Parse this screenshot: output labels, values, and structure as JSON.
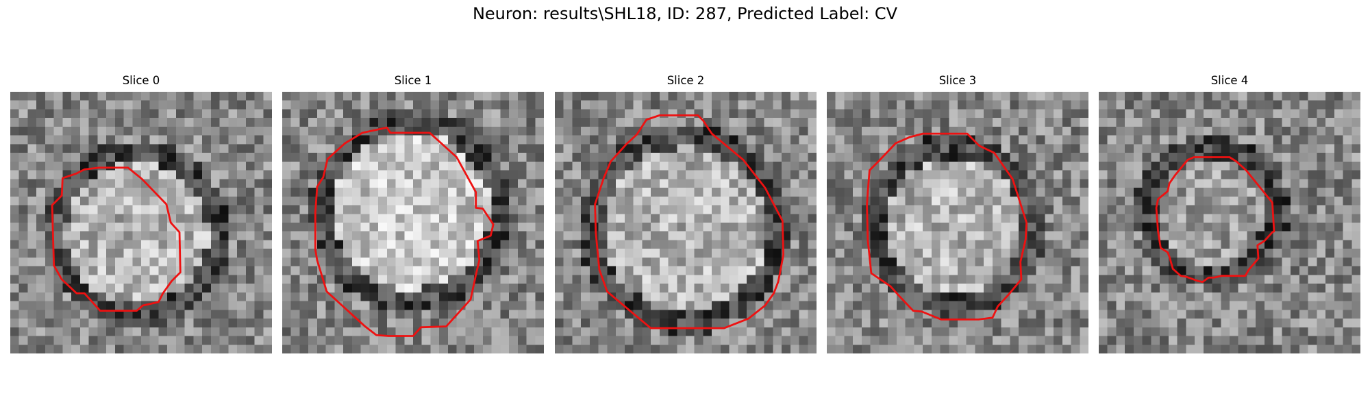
{
  "figure": {
    "title": "Neuron: results\\SHL18, ID: 287, Predicted Label: CV",
    "contour_color": "#ee1111",
    "grid_size": 30,
    "colormap": "gray"
  },
  "panels": [
    {
      "title": "Slice 0",
      "membrane": {
        "cx": 14.5,
        "cy": 16.3,
        "r": 9.3
      },
      "interior": "light",
      "seed": 11,
      "contour": [
        [
          10.2,
          8.7
        ],
        [
          13.5,
          8.7
        ],
        [
          15.1,
          10.0
        ],
        [
          17.9,
          12.9
        ],
        [
          18.4,
          15.0
        ],
        [
          19.4,
          16.1
        ],
        [
          19.5,
          20.7
        ],
        [
          18.5,
          21.7
        ],
        [
          17.5,
          23.1
        ],
        [
          17.0,
          24.1
        ],
        [
          15.2,
          24.5
        ],
        [
          14.5,
          25.1
        ],
        [
          10.3,
          25.1
        ],
        [
          8.5,
          23.1
        ],
        [
          7.6,
          23.1
        ],
        [
          5.9,
          21.5
        ],
        [
          5.0,
          19.9
        ],
        [
          4.8,
          13.0
        ],
        [
          5.9,
          11.9
        ],
        [
          6.0,
          9.9
        ],
        [
          7.5,
          9.4
        ],
        [
          8.5,
          8.9
        ]
      ]
    },
    {
      "title": "Slice 1",
      "membrane": {
        "cx": 14.8,
        "cy": 13.6,
        "r": 10.2
      },
      "interior": "bright",
      "seed": 23,
      "contour": [
        [
          9.2,
          4.7
        ],
        [
          12.0,
          4.1
        ],
        [
          12.4,
          4.7
        ],
        [
          16.9,
          4.7
        ],
        [
          20.0,
          7.5
        ],
        [
          22.2,
          11.5
        ],
        [
          22.2,
          13.3
        ],
        [
          23.0,
          13.4
        ],
        [
          24.2,
          15.2
        ],
        [
          23.9,
          16.5
        ],
        [
          22.4,
          17.1
        ],
        [
          22.6,
          19.3
        ],
        [
          22.2,
          21.0
        ],
        [
          21.6,
          23.8
        ],
        [
          18.8,
          26.9
        ],
        [
          15.9,
          27.0
        ],
        [
          15.0,
          28.0
        ],
        [
          12.2,
          28.0
        ],
        [
          10.8,
          27.9
        ],
        [
          9.5,
          26.9
        ],
        [
          5.1,
          22.9
        ],
        [
          4.0,
          19.3
        ],
        [
          3.8,
          18.1
        ],
        [
          3.8,
          13.8
        ],
        [
          4.0,
          10.9
        ],
        [
          4.7,
          9.8
        ],
        [
          5.2,
          7.7
        ],
        [
          7.2,
          5.9
        ]
      ]
    },
    {
      "title": "Slice 2",
      "membrane": {
        "cx": 14.9,
        "cy": 15.8,
        "r": 10.6
      },
      "interior": "light",
      "seed": 37,
      "contour": [
        [
          10.5,
          3.2
        ],
        [
          12.0,
          2.7
        ],
        [
          16.4,
          2.7
        ],
        [
          17.0,
          3.3
        ],
        [
          18.0,
          4.8
        ],
        [
          21.6,
          7.8
        ],
        [
          24.1,
          11.0
        ],
        [
          25.1,
          12.9
        ],
        [
          26.1,
          14.8
        ],
        [
          26.2,
          18.7
        ],
        [
          25.8,
          20.8
        ],
        [
          25.6,
          21.8
        ],
        [
          25.1,
          23.1
        ],
        [
          24.1,
          24.5
        ],
        [
          22.2,
          26.0
        ],
        [
          19.4,
          27.1
        ],
        [
          11.0,
          27.1
        ],
        [
          8.6,
          25.1
        ],
        [
          6.0,
          22.9
        ],
        [
          5.1,
          20.4
        ],
        [
          4.7,
          16.2
        ],
        [
          4.6,
          12.9
        ],
        [
          5.6,
          9.9
        ],
        [
          6.4,
          8.0
        ],
        [
          8.2,
          6.0
        ],
        [
          9.4,
          4.9
        ]
      ]
    },
    {
      "title": "Slice 3",
      "membrane": {
        "cx": 14.6,
        "cy": 15.4,
        "r": 9.0
      },
      "interior": "light",
      "seed": 51,
      "contour": [
        [
          9.5,
          5.2
        ],
        [
          11.0,
          4.8
        ],
        [
          16.1,
          4.8
        ],
        [
          17.5,
          6.2
        ],
        [
          19.2,
          7.0
        ],
        [
          21.3,
          10.0
        ],
        [
          22.9,
          15.0
        ],
        [
          22.8,
          16.9
        ],
        [
          22.2,
          19.5
        ],
        [
          22.3,
          21.5
        ],
        [
          20.8,
          23.3
        ],
        [
          19.6,
          24.6
        ],
        [
          19.0,
          25.9
        ],
        [
          17.4,
          26.1
        ],
        [
          13.1,
          26.1
        ],
        [
          10.9,
          25.2
        ],
        [
          9.9,
          25.1
        ],
        [
          8.2,
          23.3
        ],
        [
          7.3,
          22.3
        ],
        [
          5.1,
          20.8
        ],
        [
          4.7,
          17.0
        ],
        [
          4.6,
          13.0
        ],
        [
          4.7,
          11.5
        ],
        [
          4.9,
          9.0
        ],
        [
          5.9,
          8.0
        ],
        [
          7.9,
          5.9
        ]
      ]
    },
    {
      "title": "Slice 4",
      "membrane": {
        "cx": 12.9,
        "cy": 13.8,
        "r": 7.4
      },
      "interior": "medium",
      "seed": 67,
      "contour": [
        [
          10.2,
          7.8
        ],
        [
          10.9,
          7.5
        ],
        [
          15.0,
          7.5
        ],
        [
          15.8,
          8.0
        ],
        [
          16.9,
          9.0
        ],
        [
          19.9,
          12.7
        ],
        [
          20.1,
          16.0
        ],
        [
          19.9,
          16.1
        ],
        [
          19.0,
          17.1
        ],
        [
          18.2,
          17.6
        ],
        [
          18.3,
          19.1
        ],
        [
          17.2,
          20.4
        ],
        [
          16.8,
          21.1
        ],
        [
          15.1,
          21.1
        ],
        [
          14.1,
          21.1
        ],
        [
          13.2,
          21.3
        ],
        [
          12.6,
          21.3
        ],
        [
          11.9,
          21.8
        ],
        [
          11.4,
          21.7
        ],
        [
          10.0,
          21.2
        ],
        [
          9.4,
          21.1
        ],
        [
          8.5,
          20.3
        ],
        [
          8.1,
          18.9
        ],
        [
          7.9,
          18.4
        ],
        [
          7.1,
          17.9
        ],
        [
          6.8,
          16.0
        ],
        [
          6.6,
          13.3
        ],
        [
          6.8,
          12.3
        ],
        [
          7.9,
          11.4
        ],
        [
          8.1,
          10.5
        ],
        [
          8.8,
          9.5
        ]
      ]
    }
  ]
}
